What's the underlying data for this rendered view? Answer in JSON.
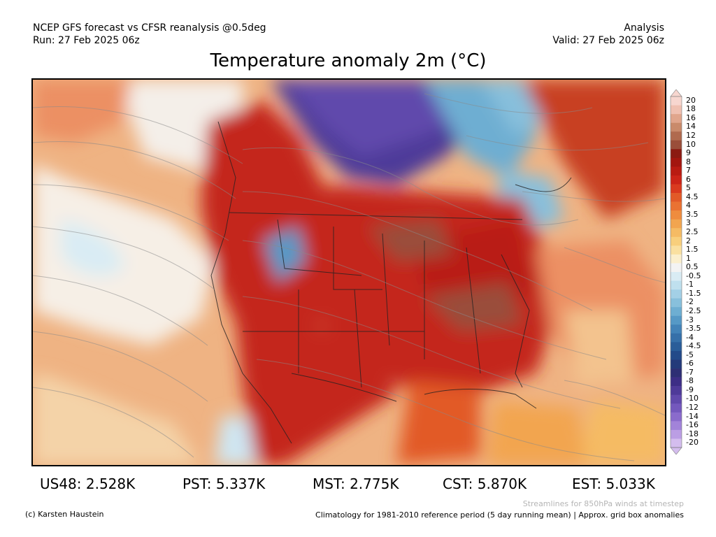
{
  "header": {
    "line1_left": "NCEP GFS forecast vs CFSR reanalysis @0.5deg",
    "line2_left": "Run: 27 Feb 2025 06z",
    "line1_right": "Analysis",
    "line2_right": "Valid: 27 Feb 2025 06z"
  },
  "title": "Temperature anomaly 2m (°C)",
  "colorbar": {
    "ticks": [
      "20",
      "18",
      "16",
      "14",
      "12",
      "10",
      "9",
      "8",
      "7",
      "6",
      "5",
      "4.5",
      "4",
      "3.5",
      "3",
      "2.5",
      "2",
      "1.5",
      "1",
      "0.5",
      "-0.5",
      "-1",
      "-1.5",
      "-2",
      "-2.5",
      "-3",
      "-3.5",
      "-4",
      "-4.5",
      "-5",
      "-6",
      "-7",
      "-8",
      "-9",
      "-10",
      "-12",
      "-14",
      "-16",
      "-18",
      "-20"
    ],
    "colors": [
      "#f7d6cf",
      "#efc0b1",
      "#e0a58c",
      "#c98a6b",
      "#b06a4e",
      "#9a4e3a",
      "#8b1a12",
      "#a3160f",
      "#b91b12",
      "#cc2418",
      "#da3a1f",
      "#e25a28",
      "#ea7232",
      "#ef8c3e",
      "#f2a54f",
      "#f5bb64",
      "#f8cf7c",
      "#fae0a0",
      "#fbefcd",
      "#f3f3f3",
      "#d9ecf4",
      "#bfe0ee",
      "#a3d0e6",
      "#88c0dc",
      "#6eaed2",
      "#5699c6",
      "#4383b8",
      "#3670a9",
      "#2a5d99",
      "#234a89",
      "#243a7a",
      "#2e2f74",
      "#3d2e86",
      "#4e3a99",
      "#6149ac",
      "#7458bd",
      "#8a6bcc",
      "#a283d9",
      "#bb9ee4",
      "#d4bdee"
    ]
  },
  "stats": [
    {
      "label": "US48: 2.528K"
    },
    {
      "label": "PST: 5.337K"
    },
    {
      "label": "MST: 2.775K"
    },
    {
      "label": "CST: 5.870K"
    },
    {
      "label": "EST: 5.033K"
    }
  ],
  "footer": {
    "credit": "(c) Karsten Haustein",
    "streamlines_note": "Streamlines for 850hPa winds at timestep",
    "climatology": "Climatology for 1981-2010 reference period (5 day running mean) | Approx. grid box anomalies"
  }
}
